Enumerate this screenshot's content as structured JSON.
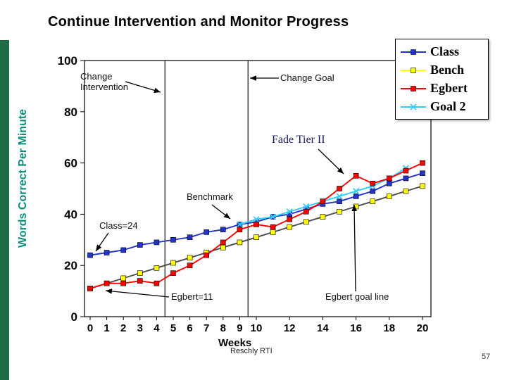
{
  "title": "Continue Intervention and Monitor Progress",
  "footer": "Reschly RTI",
  "page_number": "57",
  "colors": {
    "accent_bar": "#1F6B47",
    "y_label": "#0A8C7E"
  },
  "chart_data": {
    "type": "line",
    "title": "",
    "xlabel": "Weeks",
    "ylabel": "Words Correct Per Minute",
    "ylim": [
      0,
      100
    ],
    "y_ticks": [
      0,
      20,
      40,
      60,
      80,
      100
    ],
    "x": [
      0,
      1,
      2,
      3,
      4,
      5,
      6,
      7,
      8,
      9,
      10,
      11,
      12,
      13,
      14,
      15,
      16,
      17,
      18,
      19,
      20
    ],
    "x_tick_weeks": [
      0,
      1,
      2,
      3,
      4,
      5,
      6,
      7,
      8,
      9,
      10,
      12,
      14,
      16,
      18,
      20
    ],
    "grid": false,
    "legend_position": "top-right",
    "phase_change_weeks": [
      4.5,
      9.5
    ],
    "series": [
      {
        "name": "Class",
        "color": "#2233CC",
        "marker": "square",
        "values": [
          24,
          25,
          26,
          28,
          29,
          30,
          31,
          33,
          34,
          36,
          37,
          39,
          40,
          42,
          44,
          45,
          47,
          49,
          52,
          54,
          56
        ]
      },
      {
        "name": "Bench",
        "color": "#FFFF00",
        "line_color": "#4D4D4D",
        "marker": "square",
        "values": [
          11,
          13,
          15,
          17,
          19,
          21,
          23,
          25,
          27,
          29,
          31,
          33,
          35,
          37,
          39,
          41,
          43,
          45,
          47,
          49,
          51
        ]
      },
      {
        "name": "Egbert",
        "color": "#FF0000",
        "marker": "square",
        "values": [
          11,
          13,
          13,
          14,
          13,
          17,
          20,
          24,
          29,
          34,
          36,
          35,
          38,
          41,
          45,
          50,
          55,
          52,
          54,
          57,
          60
        ]
      },
      {
        "name": "Goal 2",
        "color": "#33CCFF",
        "marker": "x",
        "values": [
          null,
          null,
          null,
          null,
          null,
          null,
          null,
          null,
          null,
          36,
          38,
          39,
          41,
          43,
          45,
          47,
          49,
          51,
          54,
          58,
          null
        ]
      }
    ],
    "annotations": {
      "change_intervention": "Change Intervention",
      "change_goal": "Change Goal",
      "fade_tier": "Fade Tier II",
      "benchmark": "Benchmark",
      "class_start": "Class=24",
      "egbert_start": "Egbert=11",
      "egbert_goal": "Egbert goal line"
    }
  }
}
